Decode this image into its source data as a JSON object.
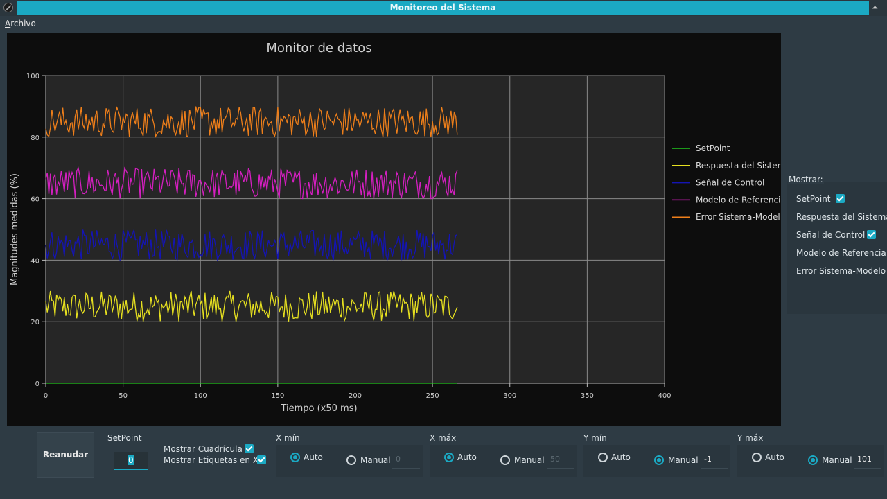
{
  "window": {
    "title": "Monitoreo del Sistema"
  },
  "menu": {
    "archivo_mnemonic": "A",
    "archivo_rest": "rchivo"
  },
  "chart_data": {
    "type": "line",
    "title": "Monitor de datos",
    "xlabel": "Tiempo (x50 ms)",
    "ylabel": "Magnitudes medidas (%)",
    "xlim": [
      0,
      400
    ],
    "ylim": [
      0,
      100
    ],
    "xticks": [
      0,
      50,
      100,
      150,
      200,
      250,
      300,
      350,
      400
    ],
    "yticks": [
      0,
      20,
      40,
      60,
      80,
      100
    ],
    "grid": true,
    "legend_position": "right",
    "x_end": 266,
    "series": [
      {
        "name": "SetPoint",
        "color": "#22c61e",
        "base": 0,
        "spread": 0,
        "values": [
          0,
          0
        ]
      },
      {
        "name": "Respuesta del Sistema",
        "color": "#e6e020",
        "base": 20,
        "spread": 10,
        "values": [
          20,
          30
        ]
      },
      {
        "name": "Señal de Control",
        "color": "#1414b4",
        "base": 40,
        "spread": 10,
        "values": [
          40,
          50
        ]
      },
      {
        "name": "Modelo de Referencia",
        "color": "#d41fc0",
        "base": 60,
        "spread": 10,
        "values": [
          60,
          70
        ]
      },
      {
        "name": "Error Sistema-Modelo",
        "color": "#ef7f1a",
        "base": 80,
        "spread": 10,
        "values": [
          80,
          90
        ]
      }
    ]
  },
  "legend_labels": [
    "SetPoint",
    "Respuesta del Sister",
    "Señal de Control",
    "Modelo de Referenci",
    "Error Sistema-Model"
  ],
  "side": {
    "group_label": "Mostrar:",
    "items": [
      {
        "label": "SetPoint",
        "checked": true
      },
      {
        "label": "Respuesta del Sistema",
        "checked": false
      },
      {
        "label": "Señal de Control",
        "checked": true
      },
      {
        "label": "Modelo de Referencia",
        "checked": false
      },
      {
        "label": "Error Sistema-Modelo",
        "checked": false
      }
    ]
  },
  "controls": {
    "reanudar_label": "Reanudar",
    "setpoint_label": "SetPoint",
    "setpoint_value": "0",
    "mostrar_cuadricula": "Mostrar Cuadrícula",
    "mostrar_etiquetas": "Mostrar Etiquetas en X",
    "xmin": {
      "label": "X mín",
      "auto": "Auto",
      "manual": "Manual",
      "value": "0",
      "mode": "auto"
    },
    "xmax": {
      "label": "X máx",
      "auto": "Auto",
      "manual": "Manual",
      "value": "50",
      "mode": "auto"
    },
    "ymin": {
      "label": "Y mín",
      "auto": "Auto",
      "manual": "Manual",
      "value": "-1",
      "mode": "manual"
    },
    "ymax": {
      "label": "Y máx",
      "auto": "Auto",
      "manual": "Manual",
      "value": "101",
      "mode": "manual"
    }
  },
  "colors": {
    "accent": "#1ba9c3",
    "plot_bg": "#262626",
    "frame_bg": "#0d0d0d"
  }
}
